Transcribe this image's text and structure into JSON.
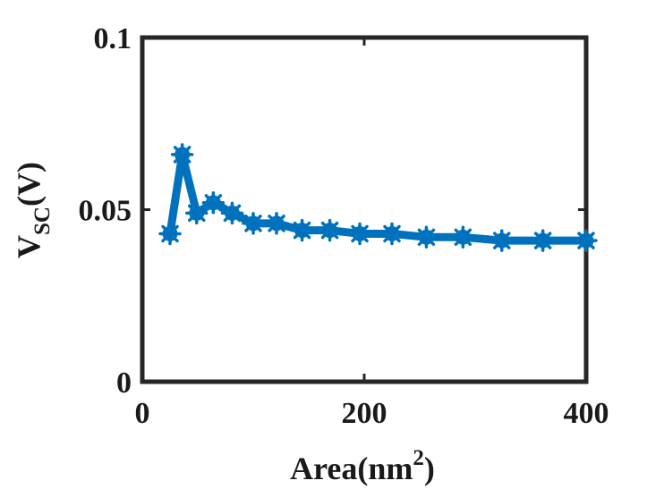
{
  "chart_data": {
    "type": "line",
    "xlabel": "Area(nm",
    "xlabel_superscript": "2",
    "xlabel_suffix": ")",
    "ylabel_main": "V",
    "ylabel_subscript": "SC",
    "ylabel_suffix": "(V)",
    "xlim": [
      0,
      400
    ],
    "ylim": [
      0,
      0.1
    ],
    "xticks": [
      0,
      200,
      400
    ],
    "xtick_labels": [
      "0",
      "200",
      "400"
    ],
    "yticks": [
      0,
      0.05,
      0.1
    ],
    "ytick_labels": [
      "0",
      "0.05",
      "0.1"
    ],
    "grid": false,
    "legend": "none",
    "series_color": "#0072BD",
    "series": [
      {
        "x": [
          25,
          36,
          49,
          64,
          81,
          100,
          121,
          144,
          169,
          196,
          225,
          256,
          289,
          324,
          361,
          400
        ],
        "y": [
          0.043,
          0.066,
          0.049,
          0.052,
          0.049,
          0.046,
          0.046,
          0.044,
          0.044,
          0.043,
          0.043,
          0.042,
          0.042,
          0.041,
          0.041,
          0.041
        ]
      }
    ]
  }
}
